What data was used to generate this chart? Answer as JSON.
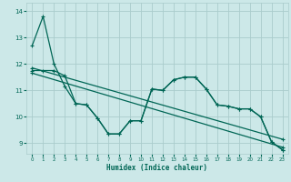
{
  "xlabel": "Humidex (Indice chaleur)",
  "background_color": "#cce8e8",
  "grid_color": "#aacccc",
  "line_color": "#006655",
  "xlim": [
    -0.5,
    23.5
  ],
  "ylim": [
    8.6,
    14.3
  ],
  "yticks": [
    9,
    10,
    11,
    12,
    13,
    14
  ],
  "xticks": [
    0,
    1,
    2,
    3,
    4,
    5,
    6,
    7,
    8,
    9,
    10,
    11,
    12,
    13,
    14,
    15,
    16,
    17,
    18,
    19,
    20,
    21,
    22,
    23
  ],
  "series1_x": [
    0,
    1,
    2,
    3,
    4,
    5,
    6,
    7,
    8,
    9,
    10,
    11,
    12,
    13,
    14,
    15,
    16,
    17,
    18,
    19,
    20,
    21,
    22,
    23
  ],
  "series1_y": [
    12.7,
    13.8,
    12.0,
    11.15,
    10.5,
    10.45,
    9.95,
    9.35,
    9.35,
    9.85,
    9.85,
    11.05,
    11.0,
    11.4,
    11.5,
    11.5,
    11.05,
    10.45,
    10.4,
    10.3,
    10.3,
    10.0,
    9.05,
    8.75
  ],
  "series2_x": [
    0,
    1,
    2,
    3,
    4,
    5,
    6,
    7,
    8,
    9,
    10,
    11,
    12,
    13,
    14,
    15,
    16,
    17,
    18,
    19,
    20,
    21,
    22,
    23
  ],
  "series2_y": [
    11.75,
    11.75,
    11.75,
    11.55,
    10.5,
    10.45,
    9.95,
    9.35,
    9.35,
    9.85,
    9.85,
    11.05,
    11.0,
    11.4,
    11.5,
    11.5,
    11.05,
    10.45,
    10.4,
    10.3,
    10.3,
    10.0,
    9.05,
    8.75
  ],
  "series3_x": [
    0,
    23
  ],
  "series3_y": [
    11.85,
    9.15
  ],
  "series4_x": [
    0,
    23
  ],
  "series4_y": [
    11.65,
    8.85
  ]
}
